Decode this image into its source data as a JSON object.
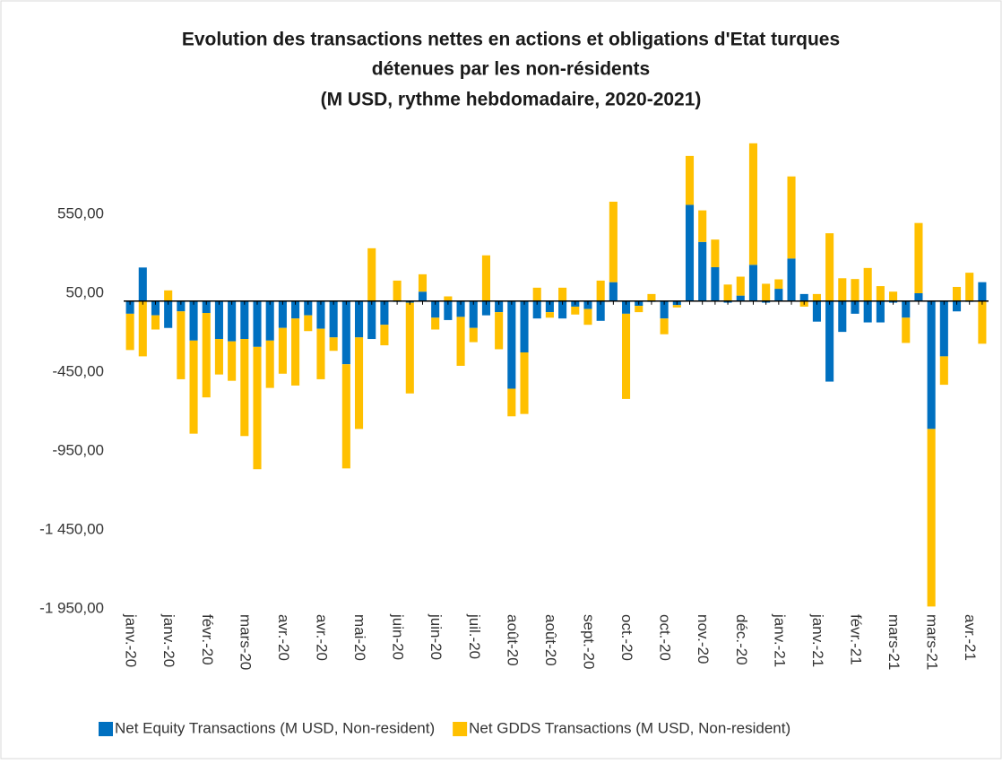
{
  "chart_data": {
    "type": "stacked_bar",
    "title": [
      "Evolution des transactions nettes en actions et obligations d'Etat turques",
      "détenues par les non-résidents",
      "(M USD, rythme hebdomadaire, 2020-2021)"
    ],
    "categories": [
      "janv.-20",
      null,
      null,
      "janv.-20",
      null,
      null,
      "févr.-20",
      null,
      null,
      "mars-20",
      null,
      null,
      "avr.-20",
      null,
      null,
      "avr.-20",
      null,
      null,
      "mai-20",
      null,
      null,
      "juin-20",
      null,
      null,
      "juin-20",
      null,
      null,
      "juil.-20",
      null,
      null,
      "août-20",
      null,
      null,
      "août-20",
      null,
      null,
      "sept.-20",
      null,
      null,
      "oct.-20",
      null,
      null,
      "oct.-20",
      null,
      null,
      "nov.-20",
      null,
      null,
      "déc.-20",
      null,
      null,
      "janv.-21",
      null,
      null,
      "janv.-21",
      null,
      null,
      "févr.-21",
      null,
      null,
      "mars-21",
      null,
      null,
      "mars-21",
      null,
      null,
      "avr.-21",
      null
    ],
    "series": [
      {
        "name": "Net Equity Transactions (M USD, Non-resident)",
        "color": "#0070c0",
        "values": [
          -80,
          213,
          -90,
          -170,
          -65,
          -250,
          -75,
          -240,
          -255,
          -240,
          -290,
          -250,
          -170,
          -110,
          -90,
          -175,
          -230,
          -400,
          -230,
          -240,
          -150,
          -5,
          -10,
          60,
          -105,
          -120,
          -100,
          -170,
          -90,
          -70,
          -555,
          -325,
          -110,
          -70,
          -110,
          -35,
          -50,
          -125,
          120,
          -80,
          -30,
          -5,
          -110,
          -25,
          610,
          375,
          215,
          -10,
          35,
          230,
          -10,
          78,
          270,
          45,
          -130,
          -510,
          -195,
          -80,
          -135,
          -135,
          -10,
          -105,
          50,
          -810,
          -350,
          -65,
          -5,
          120
        ]
      },
      {
        "name": "Net GDDS Transactions (M USD, Non-resident)",
        "color": "#ffc000",
        "values": [
          -230,
          -350,
          -90,
          68,
          -430,
          -590,
          -535,
          -225,
          -250,
          -615,
          -775,
          -300,
          -290,
          -425,
          -100,
          -320,
          -85,
          -660,
          -580,
          335,
          -130,
          130,
          -575,
          110,
          -75,
          30,
          -310,
          -90,
          290,
          -235,
          -175,
          -390,
          85,
          -35,
          85,
          -50,
          -100,
          130,
          510,
          -540,
          -40,
          45,
          -100,
          -15,
          310,
          200,
          175,
          105,
          120,
          770,
          110,
          60,
          520,
          -35,
          45,
          430,
          145,
          140,
          210,
          95,
          60,
          -160,
          445,
          -1125,
          -180,
          90,
          180,
          -270
        ]
      }
    ],
    "ylim": [
      -1950,
      1050
    ],
    "yticks": [
      {
        "value": -1950,
        "label": "-1 950,00"
      },
      {
        "value": -1450,
        "label": "-1 450,00"
      },
      {
        "value": -950,
        "label": "-950,00"
      },
      {
        "value": -450,
        "label": "-450,00"
      },
      {
        "value": 50,
        "label": "50,00"
      },
      {
        "value": 550,
        "label": "550,00"
      }
    ],
    "grid": false,
    "legend": "bottom"
  }
}
